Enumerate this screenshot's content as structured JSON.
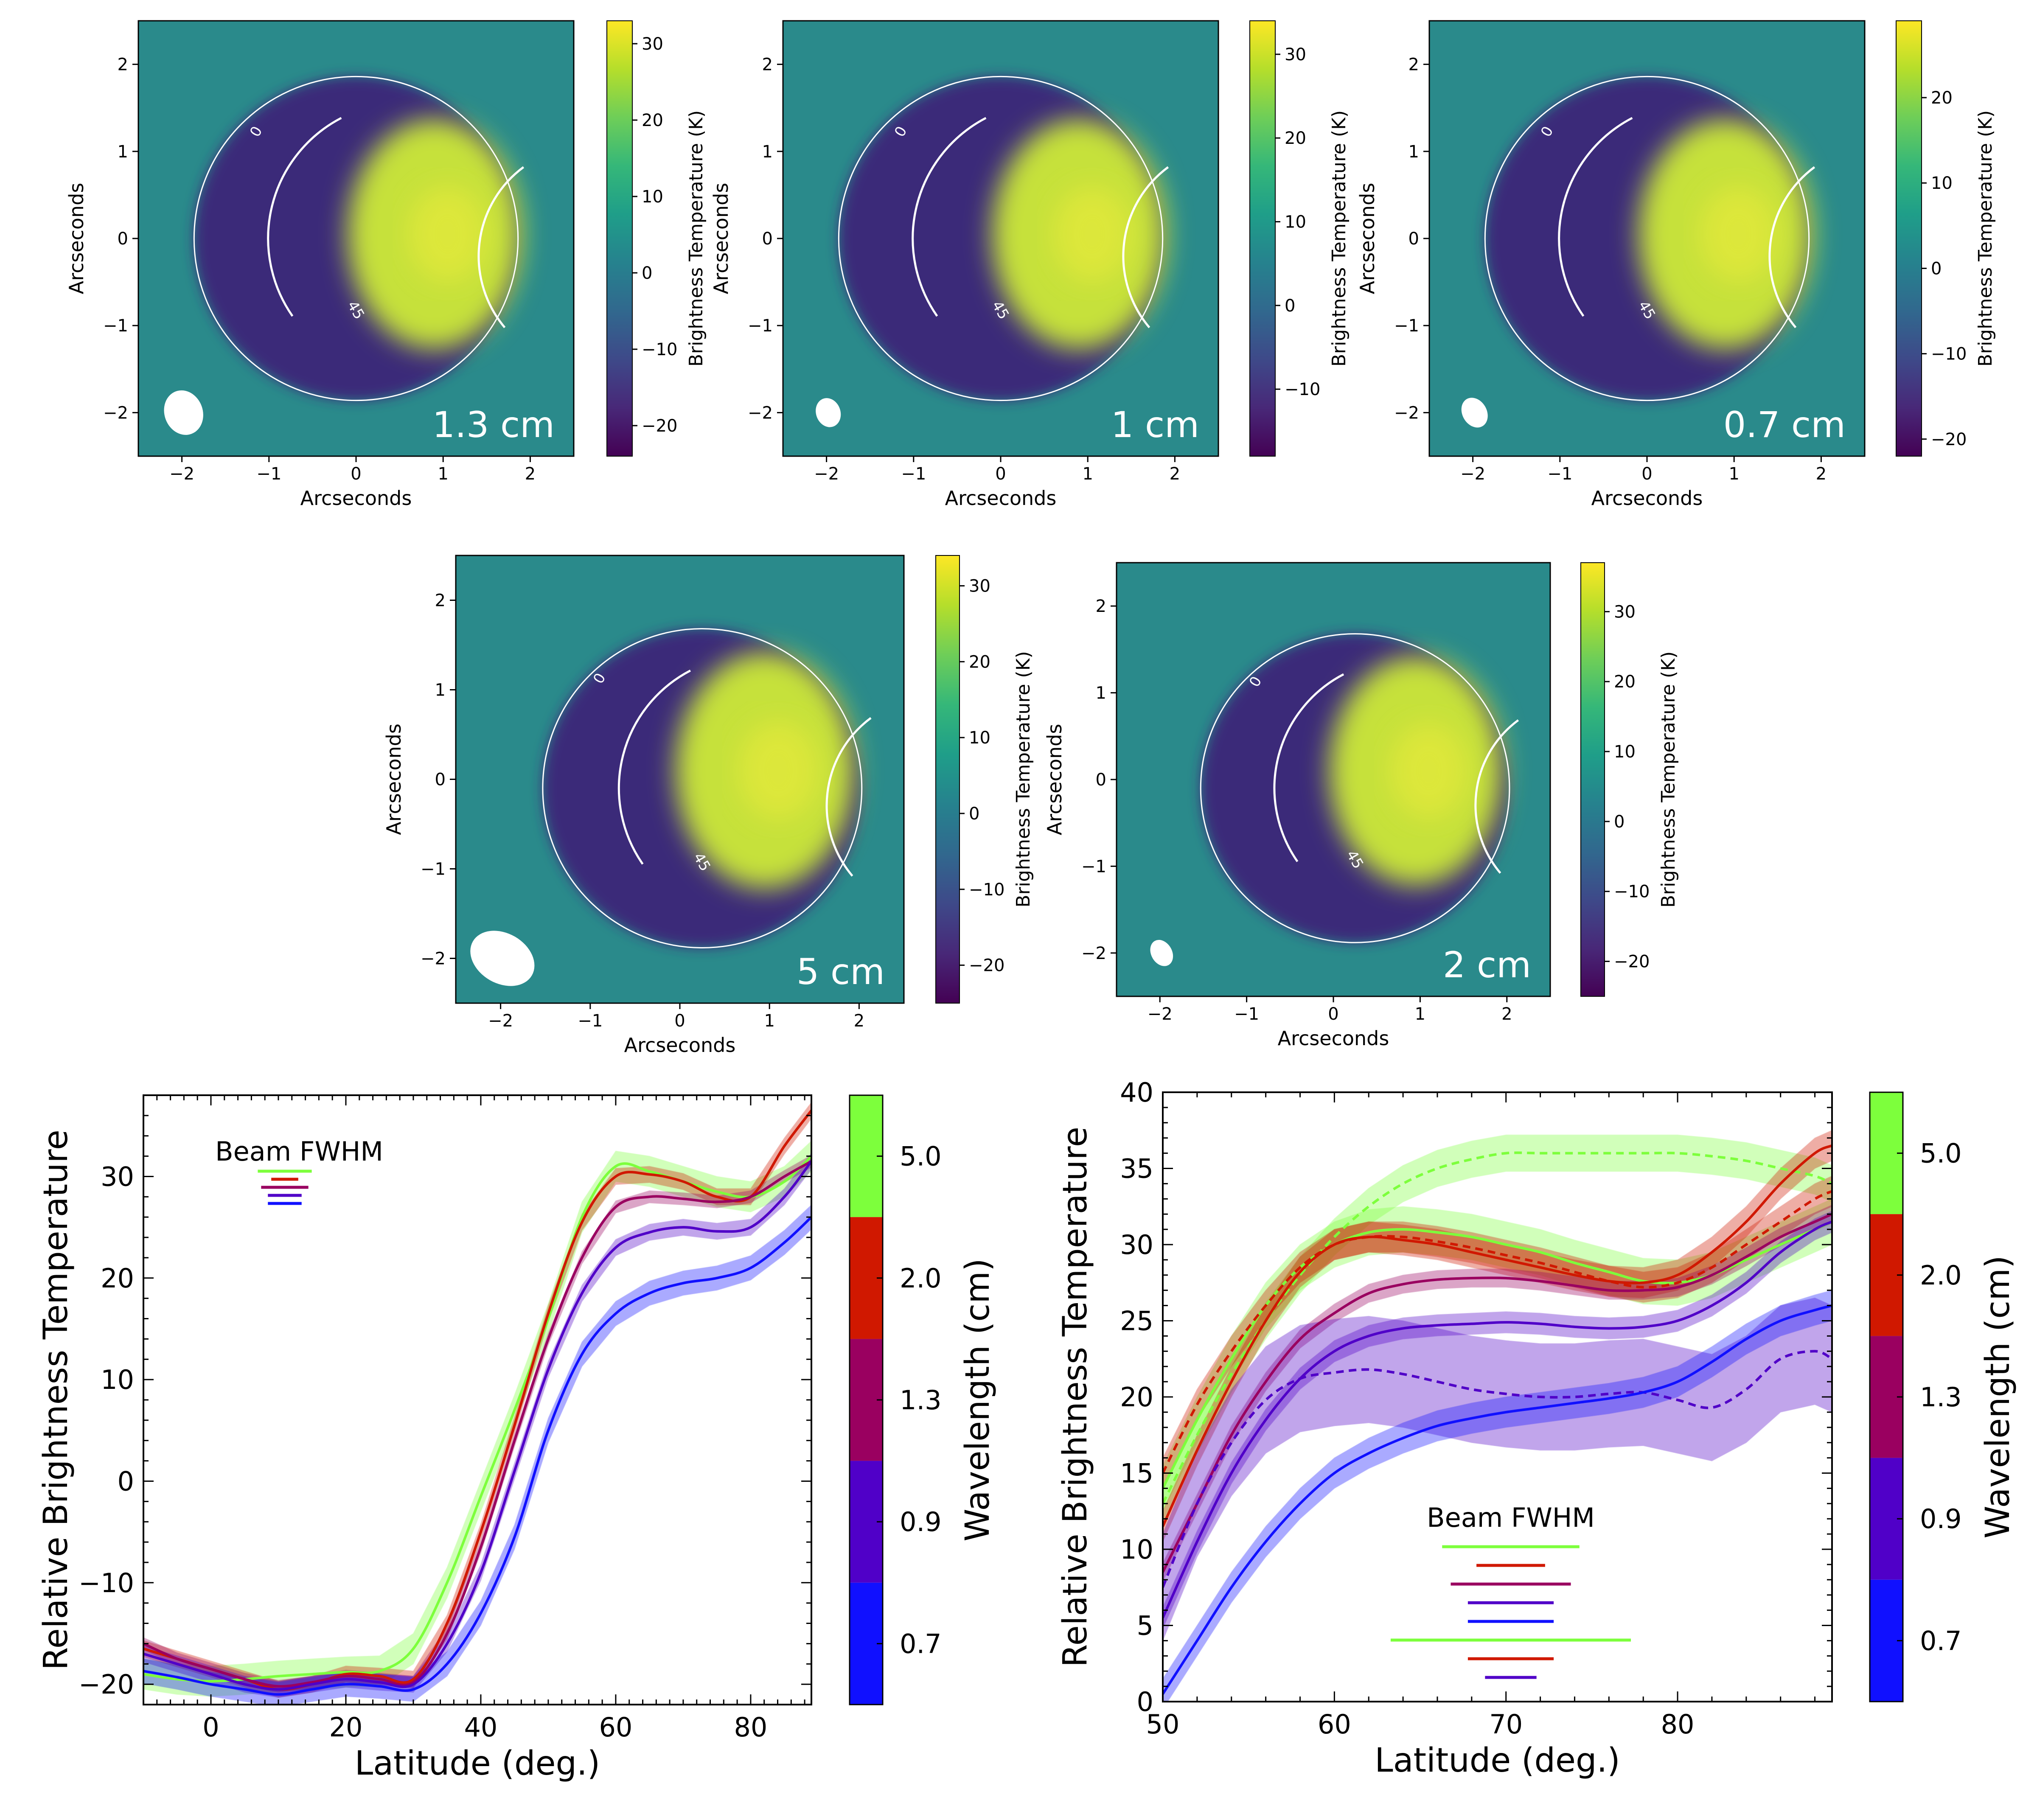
{
  "colors": {
    "viridis": [
      "#440154",
      "#482878",
      "#3e4989",
      "#31688e",
      "#26828e",
      "#1f9e89",
      "#35b779",
      "#6ece58",
      "#b5de2b",
      "#fde725"
    ],
    "wl_0_7": "#1010ff",
    "wl_0_9": "#5000c8",
    "wl_1_3": "#9a0060",
    "wl_2_0": "#d01800",
    "wl_5_0": "#7dff3c",
    "beam_lines": [
      "#7dff3c",
      "#d01800",
      "#9a0060",
      "#5000c8",
      "#1010ff"
    ]
  },
  "maps": [
    {
      "wavelength": "1.3 cm",
      "colorbar_label": "Brightness Temperature (K)",
      "colorbar_ticks": [
        "30",
        "20",
        "10",
        "0",
        "−10",
        "−20"
      ],
      "colorbar_values": [
        30,
        20,
        10,
        0,
        -10,
        -20
      ],
      "cb_range": [
        -24,
        33
      ],
      "xlabel": "Arcseconds",
      "ylabel": "Arcseconds",
      "ticks": [
        "−2",
        "−1",
        "0",
        "1",
        "2"
      ],
      "contour_labels": [
        "0",
        "45"
      ],
      "beam": {
        "w": 0.22,
        "h": 0.26,
        "angle": -20
      }
    },
    {
      "wavelength": "1 cm",
      "colorbar_label": "Brightness Temperature (K)",
      "colorbar_ticks": [
        "30",
        "20",
        "10",
        "0",
        "−10"
      ],
      "colorbar_values": [
        30,
        20,
        10,
        0,
        -10
      ],
      "cb_range": [
        -18,
        34
      ],
      "xlabel": "Arcseconds",
      "ylabel": "Arcseconds",
      "ticks": [
        "−2",
        "−1",
        "0",
        "1",
        "2"
      ],
      "contour_labels": [
        "0",
        "45"
      ],
      "beam": {
        "w": 0.14,
        "h": 0.17,
        "angle": -20
      }
    },
    {
      "wavelength": "0.7 cm",
      "colorbar_label": "Brightness Temperature (K)",
      "colorbar_ticks": [
        "20",
        "10",
        "0",
        "−10",
        "−20"
      ],
      "colorbar_values": [
        20,
        10,
        0,
        -10,
        -20
      ],
      "cb_range": [
        -22,
        29
      ],
      "xlabel": "Arcseconds",
      "ylabel": "Arcseconds",
      "ticks": [
        "−2",
        "−1",
        "0",
        "1",
        "2"
      ],
      "contour_labels": [
        "0",
        "45"
      ],
      "beam": {
        "w": 0.14,
        "h": 0.18,
        "angle": -30
      }
    },
    {
      "wavelength": "5 cm",
      "colorbar_label": "Brightness Temperature (K)",
      "colorbar_ticks": [
        "30",
        "20",
        "10",
        "0",
        "−10",
        "−20"
      ],
      "colorbar_values": [
        30,
        20,
        10,
        0,
        -10,
        -20
      ],
      "cb_range": [
        -25,
        34
      ],
      "xlabel": "Arcseconds",
      "ylabel": "Arcseconds",
      "ticks": [
        "−2",
        "−1",
        "0",
        "1",
        "2"
      ],
      "contour_labels": [
        "0",
        "45"
      ],
      "beam": {
        "w": 0.38,
        "h": 0.28,
        "angle": 30
      }
    },
    {
      "wavelength": "2 cm",
      "colorbar_label": "Brightness Temperature (K)",
      "colorbar_ticks": [
        "30",
        "20",
        "10",
        "0",
        "−10",
        "−20"
      ],
      "colorbar_values": [
        30,
        20,
        10,
        0,
        -10,
        -20
      ],
      "cb_range": [
        -25,
        37
      ],
      "xlabel": "Arcseconds",
      "ylabel": "Arcseconds",
      "ticks": [
        "−2",
        "−1",
        "0",
        "1",
        "2"
      ],
      "contour_labels": [
        "0",
        "45"
      ],
      "beam": {
        "w": 0.12,
        "h": 0.16,
        "angle": -30
      }
    }
  ],
  "chart_data": [
    {
      "type": "line",
      "title": "",
      "xlabel": "Latitude (deg.)",
      "ylabel": "Relative Brightness Temperature",
      "xlim": [
        -10,
        89
      ],
      "ylim": [
        -22,
        38
      ],
      "xticks": [
        0,
        20,
        40,
        60,
        80
      ],
      "yticks": [
        -20,
        -10,
        0,
        10,
        20,
        30
      ],
      "legend_title": "Beam FWHM",
      "beam_fwhm_deg": [
        8,
        4,
        7,
        5,
        5
      ],
      "colorbar_label": "Wavelength (cm)",
      "colorbar_ticks": [
        "5.0",
        "2.0",
        "1.3",
        "0.9",
        "0.7"
      ],
      "x": [
        -10,
        -5,
        0,
        5,
        10,
        15,
        20,
        25,
        30,
        35,
        40,
        45,
        50,
        55,
        60,
        65,
        70,
        75,
        80,
        85,
        89
      ],
      "series": [
        {
          "name": "5.0",
          "color_key": "wl_5_0",
          "uncertainty": 1.5,
          "values": [
            -19,
            -19.5,
            -19.7,
            -19.5,
            -19.2,
            -19,
            -18.8,
            -18.7,
            -16.5,
            -10,
            -1.5,
            7,
            16,
            26,
            31,
            30.5,
            29.5,
            28.5,
            28,
            29.5,
            32
          ]
        },
        {
          "name": "2.0",
          "color_key": "wl_2_0",
          "uncertainty": 0.8,
          "values": [
            -16.5,
            -17.5,
            -18.5,
            -19.5,
            -20.5,
            -20,
            -19,
            -19.2,
            -19.5,
            -14,
            -5,
            5.5,
            16.5,
            25.5,
            30,
            30.2,
            29.5,
            28,
            28,
            33,
            36.5
          ]
        },
        {
          "name": "1.3",
          "color_key": "wl_1_3",
          "uncertainty": 0.6,
          "values": [
            -16,
            -17.5,
            -18.5,
            -19.5,
            -20.2,
            -19.8,
            -19.2,
            -19.5,
            -19.8,
            -15,
            -6.5,
            4,
            14,
            22,
            27,
            28,
            27.8,
            27.5,
            28,
            30,
            31.5
          ]
        },
        {
          "name": "0.9",
          "color_key": "wl_0_9",
          "uncertainty": 0.8,
          "values": [
            -17,
            -18,
            -19,
            -20,
            -20.5,
            -20,
            -19.5,
            -19.8,
            -20,
            -16,
            -9,
            1,
            11,
            18.5,
            23,
            24.5,
            25,
            24.6,
            25,
            28,
            31.5
          ]
        },
        {
          "name": "0.7",
          "color_key": "wl_0_7",
          "uncertainty": 1.2,
          "values": [
            -18.7,
            -19.3,
            -20,
            -20.5,
            -21,
            -20.5,
            -20,
            -20.2,
            -20.5,
            -18,
            -13,
            -5.5,
            5,
            12.5,
            16.5,
            18.5,
            19.5,
            20,
            21,
            23.5,
            26
          ]
        }
      ]
    },
    {
      "type": "line",
      "title": "",
      "xlabel": "Latitude (deg.)",
      "ylabel": "Relative Brightness Temperature",
      "xlim": [
        50,
        89
      ],
      "ylim": [
        0,
        40
      ],
      "xticks": [
        50,
        60,
        70,
        80
      ],
      "yticks": [
        0,
        5,
        10,
        15,
        20,
        25,
        30,
        35,
        40
      ],
      "legend_title": "Beam FWHM",
      "beam_fwhm_deg": [
        8,
        4,
        7,
        5,
        5,
        14,
        5,
        3
      ],
      "colorbar_label": "Wavelength (cm)",
      "colorbar_ticks": [
        "5.0",
        "2.0",
        "1.3",
        "0.9",
        "0.7"
      ],
      "x": [
        50,
        52,
        54,
        56,
        58,
        60,
        62,
        64,
        66,
        68,
        70,
        72,
        74,
        76,
        78,
        80,
        82,
        84,
        86,
        88,
        89
      ],
      "series": [
        {
          "name": "5.0",
          "color_key": "wl_5_0",
          "dashed": false,
          "uncertainty": 1.5,
          "values": [
            14,
            18.5,
            22.5,
            26,
            28.5,
            30,
            30.8,
            31,
            30.8,
            30.5,
            30,
            29.5,
            28.8,
            28.2,
            27.6,
            27.5,
            28,
            29,
            30,
            31,
            31.5
          ]
        },
        {
          "name": "5.0 (alt)",
          "color_key": "wl_5_0",
          "dashed": true,
          "uncertainty": 1.2,
          "values": [
            13,
            17.5,
            21.5,
            25,
            28,
            30.5,
            32.5,
            34,
            35,
            35.6,
            36,
            36,
            36,
            36,
            36,
            36,
            35.8,
            35.5,
            35,
            34.5,
            34
          ]
        },
        {
          "name": "2.0",
          "color_key": "wl_2_0",
          "dashed": false,
          "uncertainty": 1.0,
          "values": [
            11.5,
            16.5,
            21,
            25,
            28.2,
            30,
            30.5,
            30.3,
            30,
            29.5,
            29,
            28.5,
            28,
            27.6,
            27.5,
            28,
            29.5,
            31.5,
            34,
            36,
            36.5
          ]
        },
        {
          "name": "2.0 (alt)",
          "color_key": "wl_2_0",
          "dashed": true,
          "uncertainty": 1.0,
          "values": [
            15,
            19.5,
            23,
            26,
            28.5,
            30,
            30.5,
            30.5,
            30.2,
            29.8,
            29.3,
            28.8,
            28.2,
            27.6,
            27.2,
            27.5,
            28.5,
            30,
            31.5,
            33,
            33.5
          ]
        },
        {
          "name": "1.3",
          "color_key": "wl_1_3",
          "dashed": false,
          "uncertainty": 0.6,
          "values": [
            8.5,
            13,
            17.5,
            21,
            23.8,
            25.5,
            26.8,
            27.4,
            27.7,
            27.8,
            27.8,
            27.6,
            27.3,
            27,
            27,
            27.2,
            28,
            29.2,
            30.5,
            31.5,
            32
          ]
        },
        {
          "name": "0.9",
          "color_key": "wl_0_9",
          "dashed": false,
          "uncertainty": 0.7,
          "values": [
            5.5,
            10.5,
            15,
            18.5,
            21.2,
            23,
            24,
            24.5,
            24.7,
            24.8,
            24.9,
            24.8,
            24.6,
            24.5,
            24.6,
            25,
            26,
            27.5,
            29.5,
            31,
            31.5
          ]
        },
        {
          "name": "0.9 (alt)",
          "color_key": "wl_0_9",
          "dashed": true,
          "uncertainty": 3.5,
          "values": [
            7.5,
            13,
            17,
            19.8,
            21.2,
            21.6,
            21.8,
            21.5,
            21,
            20.5,
            20.2,
            20,
            20,
            20.2,
            20.3,
            19.8,
            19.3,
            20.5,
            22.5,
            23,
            22.5
          ]
        },
        {
          "name": "0.7",
          "color_key": "wl_0_7",
          "dashed": false,
          "uncertainty": 1.0,
          "values": [
            0.5,
            4,
            7.5,
            10.5,
            13,
            15,
            16.3,
            17.3,
            18.1,
            18.6,
            19,
            19.3,
            19.6,
            19.9,
            20.3,
            21,
            22.3,
            23.8,
            25,
            25.7,
            26
          ]
        }
      ]
    }
  ],
  "wl_colorbar": {
    "label": "Wavelength (cm)",
    "ticks": [
      "5.0",
      "2.0",
      "1.3",
      "0.9",
      "0.7"
    ]
  }
}
